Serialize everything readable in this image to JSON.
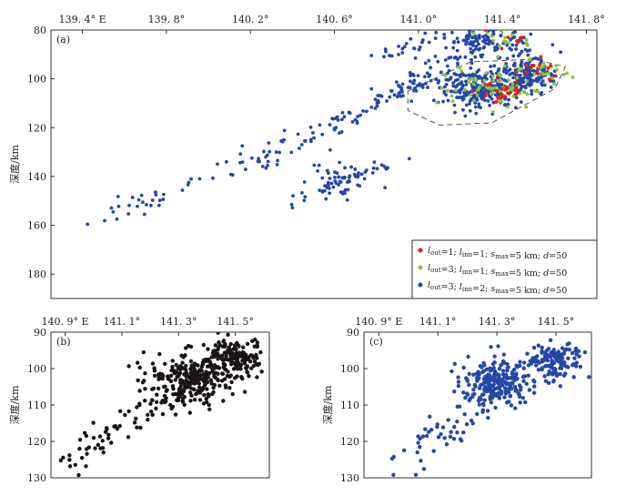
{
  "figure": {
    "ylabel": "深度/km"
  },
  "chart_data": [
    {
      "id": "a",
      "panel_label": "(a)",
      "type": "scatter",
      "x_ticks": [
        139.4,
        139.8,
        140.2,
        140.6,
        141.0,
        141.4,
        141.8
      ],
      "x_tick_labels": [
        "139. 4° E",
        "139. 8°",
        "140. 2°",
        "140. 6°",
        "141. 0°",
        "141. 4°",
        "141. 8°"
      ],
      "xlim": [
        139.25,
        141.85
      ],
      "ylim": [
        80,
        190
      ],
      "y_reversed": true,
      "y_ticks": [
        80,
        100,
        120,
        140,
        160,
        180
      ],
      "ylabel": "深度/km",
      "legend_position": "bottom-right",
      "series": [
        {
          "name": "l_out=3; l_inn=2; s_max=5 km; d=50",
          "color": "#2548a8",
          "count": 750,
          "clusters": [
            {
              "cx": 141.28,
              "cy": 104,
              "sx": 0.09,
              "sy": 4.5,
              "n": 240
            },
            {
              "cx": 141.52,
              "cy": 98,
              "sx": 0.07,
              "sy": 3.5,
              "n": 160
            },
            {
              "cx": 141.35,
              "cy": 84,
              "sx": 0.12,
              "sy": 3.0,
              "n": 90
            },
            {
              "cx": 140.62,
              "cy": 142,
              "sx": 0.07,
              "sy": 3.2,
              "n": 50
            }
          ],
          "trend": [
            [
              139.4,
              160
            ],
            [
              139.8,
              145
            ],
            [
              140.2,
              132
            ],
            [
              140.6,
              120
            ],
            [
              140.9,
              105
            ],
            [
              141.1,
              94
            ],
            [
              141.3,
              88
            ]
          ],
          "lines": [
            [
              [
                140.2,
                140
              ],
              [
                140.6,
                118
              ],
              [
                140.95,
                103
              ],
              [
                141.1,
                98
              ]
            ],
            [
              [
                140.8,
                90
              ],
              [
                141.0,
                86
              ],
              [
                141.2,
                84
              ],
              [
                141.35,
                82
              ]
            ],
            [
              [
                140.35,
                152
              ],
              [
                140.7,
                140
              ],
              [
                140.95,
                132
              ]
            ]
          ]
        },
        {
          "name": "l_out=3; l_inn=1; s_max=5 km; d=50",
          "color": "#8cc23f",
          "count": 110,
          "clusters": [
            {
              "cx": 141.35,
              "cy": 103,
              "sx": 0.1,
              "sy": 4.0,
              "n": 70
            },
            {
              "cx": 141.6,
              "cy": 97,
              "sx": 0.06,
              "sy": 3.0,
              "n": 25
            },
            {
              "cx": 141.42,
              "cy": 83,
              "sx": 0.06,
              "sy": 2.0,
              "n": 15
            }
          ]
        },
        {
          "name": "l_out=1; l_inn=1; s_max=5 km; d=50",
          "color": "#e02020",
          "count": 50,
          "clusters": [
            {
              "cx": 141.4,
              "cy": 106,
              "sx": 0.05,
              "sy": 3.0,
              "n": 28
            },
            {
              "cx": 141.55,
              "cy": 98,
              "sx": 0.05,
              "sy": 2.5,
              "n": 14
            },
            {
              "cx": 141.42,
              "cy": 84,
              "sx": 0.05,
              "sy": 2.0,
              "n": 8
            }
          ]
        }
      ],
      "legend": [
        {
          "color": "#e02020",
          "l_out": "1",
          "l_inn": "1",
          "s_max": "5 km",
          "d": "50"
        },
        {
          "color": "#8cc23f",
          "l_out": "3",
          "l_inn": "1",
          "s_max": "5 km",
          "d": "50"
        },
        {
          "color": "#2548a8",
          "l_out": "3",
          "l_inn": "2",
          "s_max": "5 km",
          "d": "50"
        }
      ]
    },
    {
      "id": "b",
      "panel_label": "(b)",
      "type": "scatter",
      "x_ticks": [
        140.9,
        141.1,
        141.3,
        141.5
      ],
      "x_tick_labels": [
        "140. 9° E",
        "141. 1°",
        "141. 3°",
        "141. 5°"
      ],
      "xlim": [
        140.85,
        141.62
      ],
      "ylim": [
        90,
        130
      ],
      "y_reversed": true,
      "y_ticks": [
        90,
        100,
        110,
        120,
        130
      ],
      "ylabel": "深度/km",
      "series": [
        {
          "name": "",
          "color": "#1a1414",
          "count": 480,
          "clusters": [
            {
              "cx": 141.33,
              "cy": 103,
              "sx": 0.07,
              "sy": 3.5,
              "n": 230
            },
            {
              "cx": 141.5,
              "cy": 97,
              "sx": 0.05,
              "sy": 2.8,
              "n": 150
            }
          ],
          "trend": [
            [
              140.9,
              125
            ],
            [
              141.05,
              117
            ],
            [
              141.2,
              109
            ],
            [
              141.35,
              102
            ],
            [
              141.55,
              95
            ]
          ]
        }
      ]
    },
    {
      "id": "c",
      "panel_label": "(c)",
      "type": "scatter",
      "x_ticks": [
        140.9,
        141.1,
        141.3,
        141.5
      ],
      "x_tick_labels": [
        "140. 9° E",
        "141. 1°",
        "141. 3°",
        "141. 5°"
      ],
      "xlim": [
        140.85,
        141.62
      ],
      "ylim": [
        90,
        130
      ],
      "y_reversed": true,
      "y_ticks": [
        90,
        100,
        110,
        120,
        130
      ],
      "ylabel": "深度/km",
      "series": [
        {
          "name": "",
          "color": "#2548a8",
          "count": 420,
          "clusters": [
            {
              "cx": 141.3,
              "cy": 104,
              "sx": 0.06,
              "sy": 3.0,
              "n": 210
            },
            {
              "cx": 141.5,
              "cy": 98,
              "sx": 0.045,
              "sy": 2.5,
              "n": 130
            }
          ],
          "trend": [
            [
              140.95,
              127
            ],
            [
              141.1,
              119
            ],
            [
              141.2,
              112
            ],
            [
              141.35,
              104
            ],
            [
              141.55,
              95
            ]
          ]
        }
      ]
    }
  ]
}
